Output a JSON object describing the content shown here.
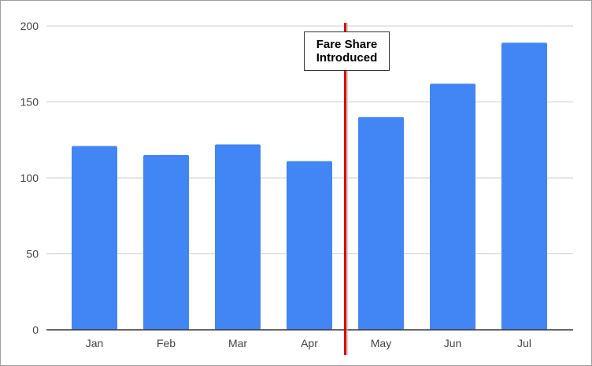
{
  "chart_data": {
    "type": "bar",
    "title": "",
    "xlabel": "",
    "ylabel": "",
    "categories": [
      "Jan",
      "Feb",
      "Mar",
      "Apr",
      "May",
      "Jun",
      "Jul"
    ],
    "values": [
      121,
      115,
      122,
      111,
      140,
      162,
      189
    ],
    "ylim": [
      0,
      200
    ],
    "yticks": [
      "0",
      "50",
      "100",
      "150",
      "200"
    ],
    "grid": true,
    "legend": "none",
    "bar_color": "#4285f4",
    "annotation": {
      "line1": "Fare Share",
      "line2": "Introduced",
      "line_color": "#dd0000",
      "between": [
        "Apr",
        "May"
      ]
    }
  }
}
